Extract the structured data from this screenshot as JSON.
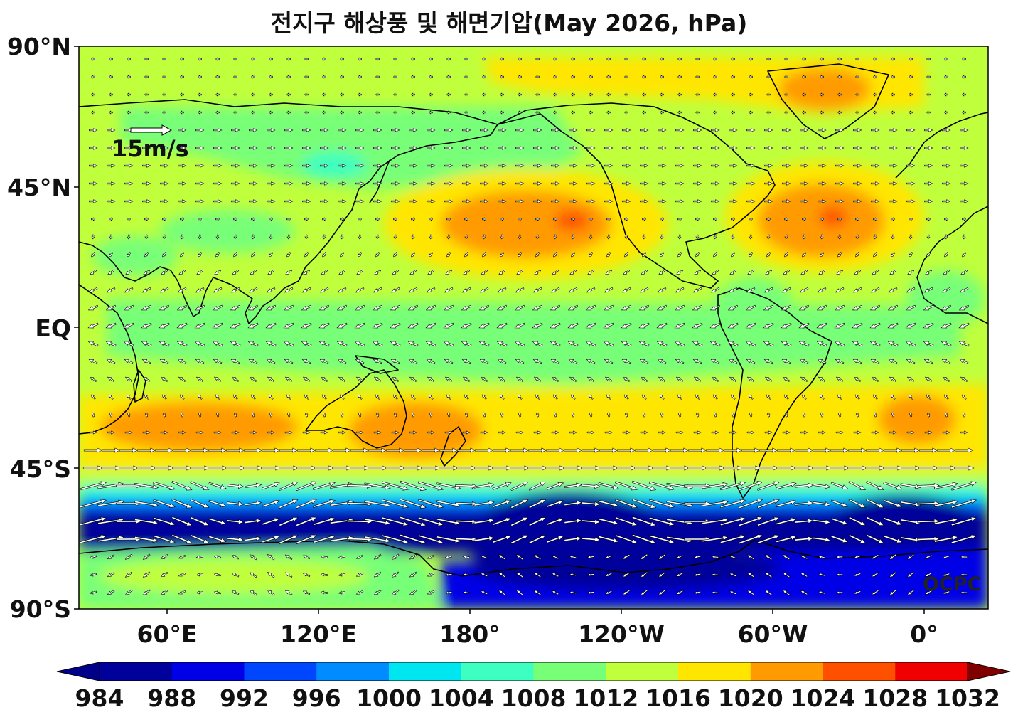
{
  "title": "전지구 해상풍 및 해면기압(May 2026, hPa)",
  "credit": "OCPC",
  "reference_vector": {
    "label": "15m/s",
    "speed": 15
  },
  "map": {
    "projection": "equirectangular",
    "central_longitude": 180,
    "lat_range": [
      -90,
      90
    ],
    "lat_ticks": [
      "90°N",
      "45°N",
      "EQ",
      "45°S",
      "90°S"
    ],
    "lon_ticks": [
      "60°E",
      "120°E",
      "180°",
      "120°W",
      "60°W",
      "0°"
    ],
    "variable": "mean sea level pressure",
    "units": "hPa",
    "overlay": "sea surface wind vectors"
  },
  "colorbar": {
    "levels": [
      "984",
      "988",
      "992",
      "996",
      "1000",
      "1004",
      "1008",
      "1012",
      "1016",
      "1020",
      "1024",
      "1028",
      "1032"
    ],
    "colors": [
      "#00009a",
      "#0000e6",
      "#0046ff",
      "#008cff",
      "#00e6f0",
      "#3cffc0",
      "#78ff78",
      "#c0ff3c",
      "#ffe600",
      "#ff9b00",
      "#ff5000",
      "#f00000"
    ],
    "under_color": "#00008b",
    "over_color": "#800000",
    "extend": "both"
  },
  "pressure_features": [
    {
      "name": "North Pacific high",
      "value": 1028
    },
    {
      "name": "Azores high",
      "value": 1028
    },
    {
      "name": "Indian Ocean subtropical high",
      "value": 1020
    },
    {
      "name": "Australian high",
      "value": 1020
    },
    {
      "name": "South Atlantic high",
      "value": 1020
    },
    {
      "name": "Circumpolar trough",
      "value": 984
    }
  ]
}
